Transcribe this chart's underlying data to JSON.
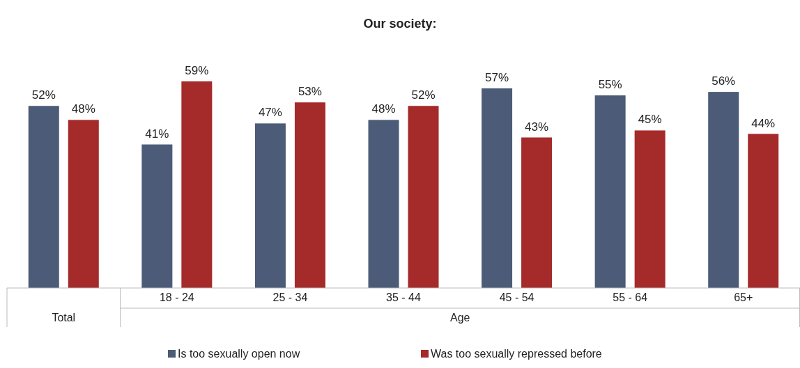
{
  "chart_data": {
    "type": "bar",
    "title": "Our society:",
    "categories": [
      "Total",
      "18 - 24",
      "25 - 34",
      "35 - 44",
      "45 - 54",
      "55 - 64",
      "65+"
    ],
    "xlabel": "Age",
    "series": [
      {
        "name": "Is too sexually open now",
        "color": "#4b5b78",
        "values": [
          52,
          41,
          47,
          48,
          57,
          55,
          56
        ],
        "value_labels": [
          "52%",
          "41%",
          "47%",
          "48%",
          "57%",
          "55%",
          "56%"
        ]
      },
      {
        "name": "Was too sexually repressed before",
        "color": "#a52a2a",
        "values": [
          48,
          59,
          53,
          52,
          43,
          45,
          44
        ],
        "value_labels": [
          "48%",
          "59%",
          "53%",
          "52%",
          "43%",
          "45%",
          "44%"
        ]
      }
    ],
    "legend": "bottom",
    "grid": false
  }
}
